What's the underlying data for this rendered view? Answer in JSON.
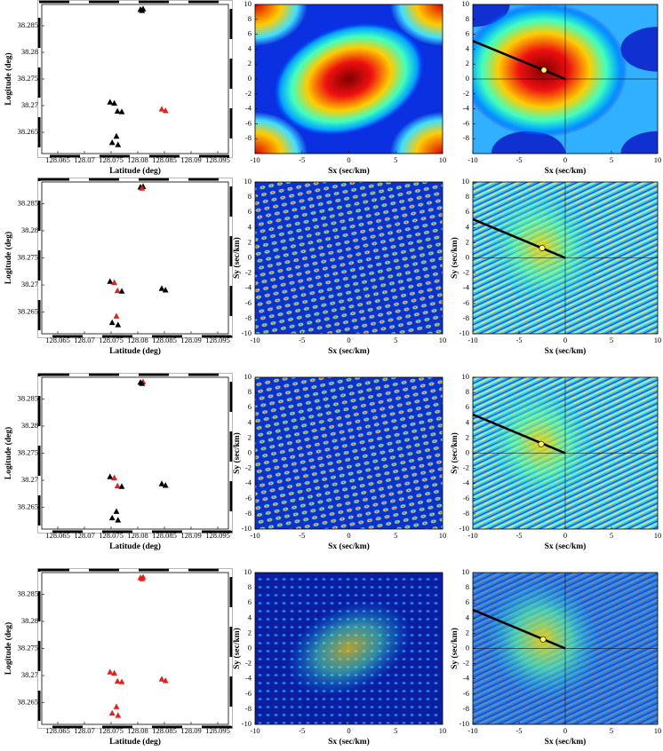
{
  "chart_data": [
    {
      "type": "scatter",
      "xlabel": "Latitude (deg)",
      "ylabel": "Logitude (deg)",
      "xlim": [
        128.062,
        128.097
      ],
      "ylim": [
        38.261,
        38.289
      ],
      "xticks": [
        128.065,
        128.07,
        128.075,
        128.08,
        128.085,
        128.09,
        128.095
      ],
      "yticks": [
        38.265,
        38.27,
        38.275,
        38.28,
        38.285
      ],
      "x": [
        128.0805,
        128.081,
        128.0808,
        128.0748,
        128.0756,
        128.0762,
        128.077,
        128.0845,
        128.0852,
        128.0752,
        128.076,
        128.0763
      ],
      "y": [
        38.288,
        38.2881,
        38.2878,
        38.2706,
        38.2704,
        38.2689,
        38.2688,
        38.2693,
        38.269,
        38.263,
        38.2642,
        38.2626
      ],
      "colors": [
        "#000000",
        "#000000",
        "#000000",
        "#000000",
        "#000000",
        "#000000",
        "#000000",
        "#e8201c",
        "#e8201c",
        "#000000",
        "#000000",
        "#000000"
      ]
    },
    {
      "type": "heatmap",
      "colormap": "jet",
      "xlabel": "Sx (sec/km)",
      "xlim": [
        -10,
        10
      ],
      "ylim": [
        -10,
        10
      ],
      "xticks": [
        -10,
        -5,
        0,
        5,
        10
      ],
      "yticks": [
        -8,
        -6,
        -4,
        -2,
        0,
        2,
        4,
        6,
        8,
        10
      ]
    },
    {
      "type": "heatmap",
      "colormap": "jet",
      "xlabel": "Sx (sec/km)",
      "xlim": [
        -10,
        10
      ],
      "ylim": [
        -10,
        10
      ],
      "xticks": [
        -10,
        -5,
        0,
        5,
        10
      ],
      "yticks": [
        -8,
        -6,
        -4,
        -2,
        0,
        2,
        4,
        6,
        8,
        10
      ],
      "line": {
        "x": [
          0,
          -10
        ],
        "y": [
          0,
          5.1
        ]
      },
      "peak": {
        "x": -2.3,
        "y": 1.2
      }
    },
    {
      "type": "scatter",
      "xlabel": "Latitude (deg)",
      "ylabel": "Logitude (deg)",
      "xlim": [
        128.062,
        128.097
      ],
      "ylim": [
        38.261,
        38.289
      ],
      "xticks": [
        128.065,
        128.07,
        128.075,
        128.08,
        128.085,
        128.09,
        128.095
      ],
      "yticks": [
        38.265,
        38.27,
        38.275,
        38.28,
        38.285
      ],
      "x": [
        128.0805,
        128.081,
        128.0808,
        128.0748,
        128.0756,
        128.0762,
        128.077,
        128.0845,
        128.0852,
        128.0752,
        128.076,
        128.0763
      ],
      "y": [
        38.288,
        38.2881,
        38.2878,
        38.2706,
        38.2704,
        38.2689,
        38.2688,
        38.2693,
        38.269,
        38.263,
        38.2642,
        38.2626
      ],
      "colors": [
        "#000000",
        "#000000",
        "#e8201c",
        "#000000",
        "#e8201c",
        "#e8201c",
        "#000000",
        "#000000",
        "#000000",
        "#000000",
        "#e8201c",
        "#000000"
      ]
    },
    {
      "type": "heatmap",
      "colormap": "jet",
      "xlabel": "Sx (sec/km)",
      "ylabel": "Sy (sec/km)",
      "xlim": [
        -10,
        10
      ],
      "ylim": [
        -10,
        10
      ],
      "xticks": [
        -10,
        -5,
        0,
        5,
        10
      ],
      "yticks": [
        -10,
        -8,
        -6,
        -4,
        -2,
        0,
        2,
        4,
        6,
        8,
        10
      ]
    },
    {
      "type": "heatmap",
      "colormap": "jet",
      "xlabel": "Sx (sec/km)",
      "ylabel": "Sy (sec/km)",
      "xlim": [
        -10,
        10
      ],
      "ylim": [
        -10,
        10
      ],
      "xticks": [
        -10,
        -5,
        0,
        5,
        10
      ],
      "yticks": [
        -10,
        -8,
        -6,
        -4,
        -2,
        0,
        2,
        4,
        6,
        8,
        10
      ],
      "line": {
        "x": [
          0,
          -10
        ],
        "y": [
          0,
          5.1
        ]
      },
      "peak": {
        "x": -2.5,
        "y": 1.3
      }
    },
    {
      "type": "scatter",
      "xlabel": "Latitude (deg)",
      "ylabel": "Logitude (deg)",
      "xlim": [
        128.062,
        128.097
      ],
      "ylim": [
        38.261,
        38.289
      ],
      "xticks": [
        128.065,
        128.07,
        128.075,
        128.08,
        128.085,
        128.09,
        128.095
      ],
      "yticks": [
        38.265,
        38.27,
        38.275,
        38.28,
        38.285
      ],
      "x": [
        128.0805,
        128.081,
        128.0808,
        128.0748,
        128.0756,
        128.0762,
        128.077,
        128.0845,
        128.0852,
        128.0752,
        128.076,
        128.0763
      ],
      "y": [
        38.288,
        38.2881,
        38.2878,
        38.2706,
        38.2704,
        38.2689,
        38.2688,
        38.2693,
        38.269,
        38.263,
        38.2642,
        38.2626
      ],
      "colors": [
        "#000000",
        "#e8201c",
        "#000000",
        "#000000",
        "#e8201c",
        "#e8201c",
        "#000000",
        "#000000",
        "#000000",
        "#000000",
        "#000000",
        "#000000"
      ]
    },
    {
      "type": "heatmap",
      "colormap": "jet",
      "xlabel": "Sx (sec/km)",
      "ylabel": "Sy (sec/km)",
      "xlim": [
        -10,
        10
      ],
      "ylim": [
        -10,
        10
      ],
      "xticks": [
        -10,
        -5,
        0,
        5,
        10
      ],
      "yticks": [
        -10,
        -8,
        -6,
        -4,
        -2,
        0,
        2,
        4,
        6,
        8,
        10
      ]
    },
    {
      "type": "heatmap",
      "colormap": "jet",
      "xlabel": "Sx (sec/km)",
      "ylabel": "Sy (sec/km)",
      "xlim": [
        -10,
        10
      ],
      "ylim": [
        -10,
        10
      ],
      "xticks": [
        -10,
        -5,
        0,
        5,
        10
      ],
      "yticks": [
        -10,
        -8,
        -6,
        -4,
        -2,
        0,
        2,
        4,
        6,
        8,
        10
      ],
      "line": {
        "x": [
          0,
          -10
        ],
        "y": [
          0,
          5.1
        ]
      },
      "peak": {
        "x": -2.6,
        "y": 1.2
      }
    },
    {
      "type": "scatter",
      "xlabel": "Latitude (deg)",
      "ylabel": "Logitude (deg)",
      "xlim": [
        128.062,
        128.097
      ],
      "ylim": [
        38.261,
        38.289
      ],
      "xticks": [
        128.065,
        128.07,
        128.075,
        128.08,
        128.085,
        128.09,
        128.095
      ],
      "yticks": [
        38.265,
        38.27,
        38.275,
        38.28,
        38.285
      ],
      "x": [
        128.0805,
        128.081,
        128.0808,
        128.0748,
        128.0756,
        128.0762,
        128.077,
        128.0845,
        128.0852,
        128.0752,
        128.076,
        128.0763
      ],
      "y": [
        38.288,
        38.2881,
        38.2878,
        38.2706,
        38.2704,
        38.2689,
        38.2688,
        38.2693,
        38.269,
        38.263,
        38.2642,
        38.2626
      ],
      "colors": [
        "#e8201c",
        "#e8201c",
        "#e8201c",
        "#e8201c",
        "#e8201c",
        "#e8201c",
        "#e8201c",
        "#e8201c",
        "#e8201c",
        "#e8201c",
        "#e8201c",
        "#e8201c"
      ]
    },
    {
      "type": "heatmap",
      "colormap": "jet",
      "xlabel": "Sx (sec/km)",
      "ylabel": "Sy (sec/km)",
      "xlim": [
        -10,
        10
      ],
      "ylim": [
        -10,
        10
      ],
      "xticks": [
        -10,
        -5,
        0,
        5,
        10
      ],
      "yticks": [
        -10,
        -8,
        -6,
        -4,
        -2,
        0,
        2,
        4,
        6,
        8,
        10
      ]
    },
    {
      "type": "heatmap",
      "colormap": "jet",
      "xlabel": "Sx (sec/km)",
      "ylabel": "Sy (sec/km)",
      "xlim": [
        -10,
        10
      ],
      "ylim": [
        -10,
        10
      ],
      "xticks": [
        -10,
        -5,
        0,
        5,
        10
      ],
      "yticks": [
        -10,
        -8,
        -6,
        -4,
        -2,
        0,
        2,
        4,
        6,
        8,
        10
      ],
      "line": {
        "x": [
          0,
          -10
        ],
        "y": [
          0,
          5.1
        ]
      },
      "peak": {
        "x": -2.4,
        "y": 1.2
      }
    }
  ]
}
